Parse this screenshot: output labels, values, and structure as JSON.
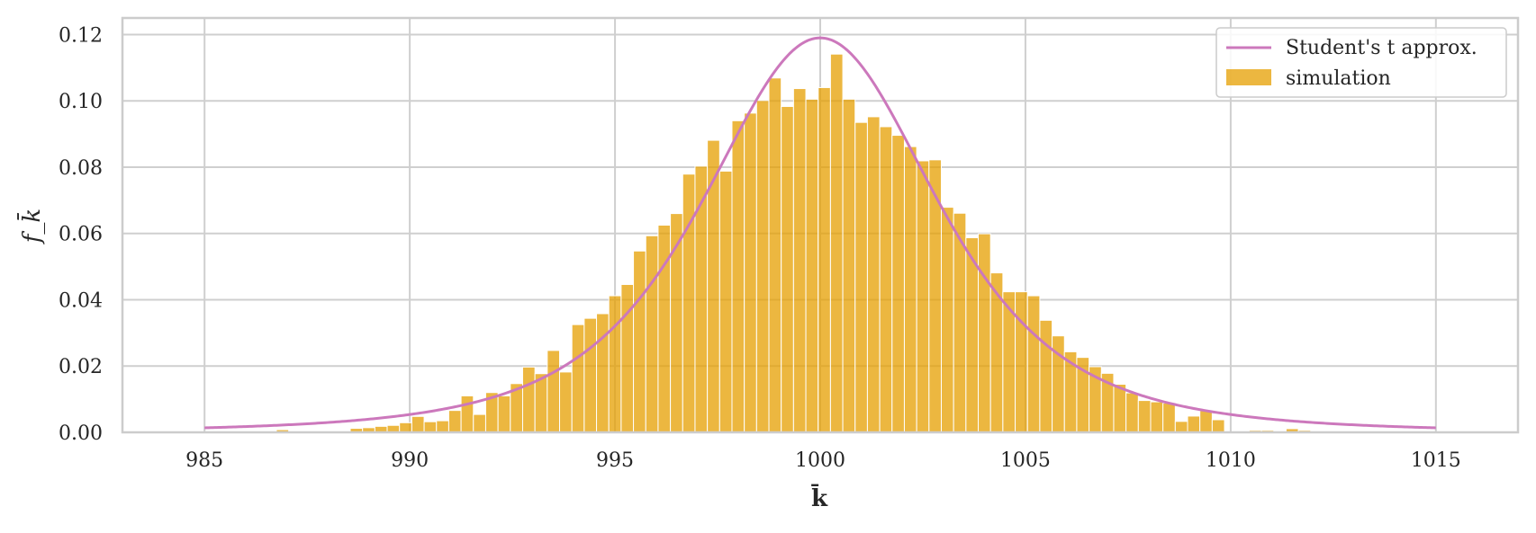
{
  "chart_data": {
    "type": "bar",
    "title": "",
    "xlabel": "k̄",
    "ylabel": "f_k̄",
    "xlim": [
      983,
      1017
    ],
    "ylim": [
      0,
      0.125
    ],
    "grid": true,
    "legend_position": "top-right",
    "x_ticks": [
      985,
      990,
      995,
      1000,
      1005,
      1010,
      1015
    ],
    "x_tick_labels": [
      "985",
      "990",
      "995",
      "1000",
      "1005",
      "1010",
      "1015"
    ],
    "y_ticks": [
      0,
      0.02,
      0.04,
      0.06,
      0.08,
      0.1,
      0.12
    ],
    "y_tick_labels": [
      "0.00",
      "0.02",
      "0.04",
      "0.06",
      "0.08",
      "0.10",
      "0.12"
    ],
    "series": [
      {
        "name": "Student's t approx.",
        "type": "line",
        "color": "#cc78bc",
        "curve": "student-t",
        "location": 1000,
        "scale": 3.0,
        "df": 3,
        "x_range": [
          985,
          1015
        ],
        "peak": 0.119
      },
      {
        "name": "simulation",
        "type": "bar",
        "color": "#e69f00",
        "bin_width": 0.3,
        "x_start": 986.75,
        "values": [
          0.0008,
          0,
          0,
          0,
          0,
          0,
          0.0012,
          0.0014,
          0.0018,
          0.0021,
          0.0029,
          0.0048,
          0.0032,
          0.0035,
          0.0066,
          0.011,
          0.0054,
          0.012,
          0.011,
          0.0147,
          0.0197,
          0.0177,
          0.0247,
          0.0182,
          0.0325,
          0.0344,
          0.0358,
          0.0412,
          0.0446,
          0.0547,
          0.0593,
          0.0625,
          0.066,
          0.0779,
          0.0803,
          0.0881,
          0.0788,
          0.094,
          0.0963,
          0.1001,
          0.1069,
          0.0983,
          0.1037,
          0.1005,
          0.104,
          0.1141,
          0.1005,
          0.0935,
          0.0952,
          0.0922,
          0.0896,
          0.0862,
          0.0819,
          0.0822,
          0.0679,
          0.0661,
          0.0587,
          0.0599,
          0.0481,
          0.0424,
          0.0424,
          0.0412,
          0.0338,
          0.0291,
          0.0243,
          0.0226,
          0.0198,
          0.0178,
          0.0145,
          0.0119,
          0.0096,
          0.0092,
          0.0088,
          0.0033,
          0.0049,
          0.0065,
          0.0038,
          0,
          0,
          0.0006,
          0.0006,
          0,
          0.0011,
          0.0006,
          0,
          0,
          0
        ]
      }
    ]
  },
  "colors": {
    "background": "#ffffff",
    "grid": "#cfcfcf",
    "spine": "#cccccc",
    "bar": "#e69f00",
    "line": "#cc78bc"
  }
}
